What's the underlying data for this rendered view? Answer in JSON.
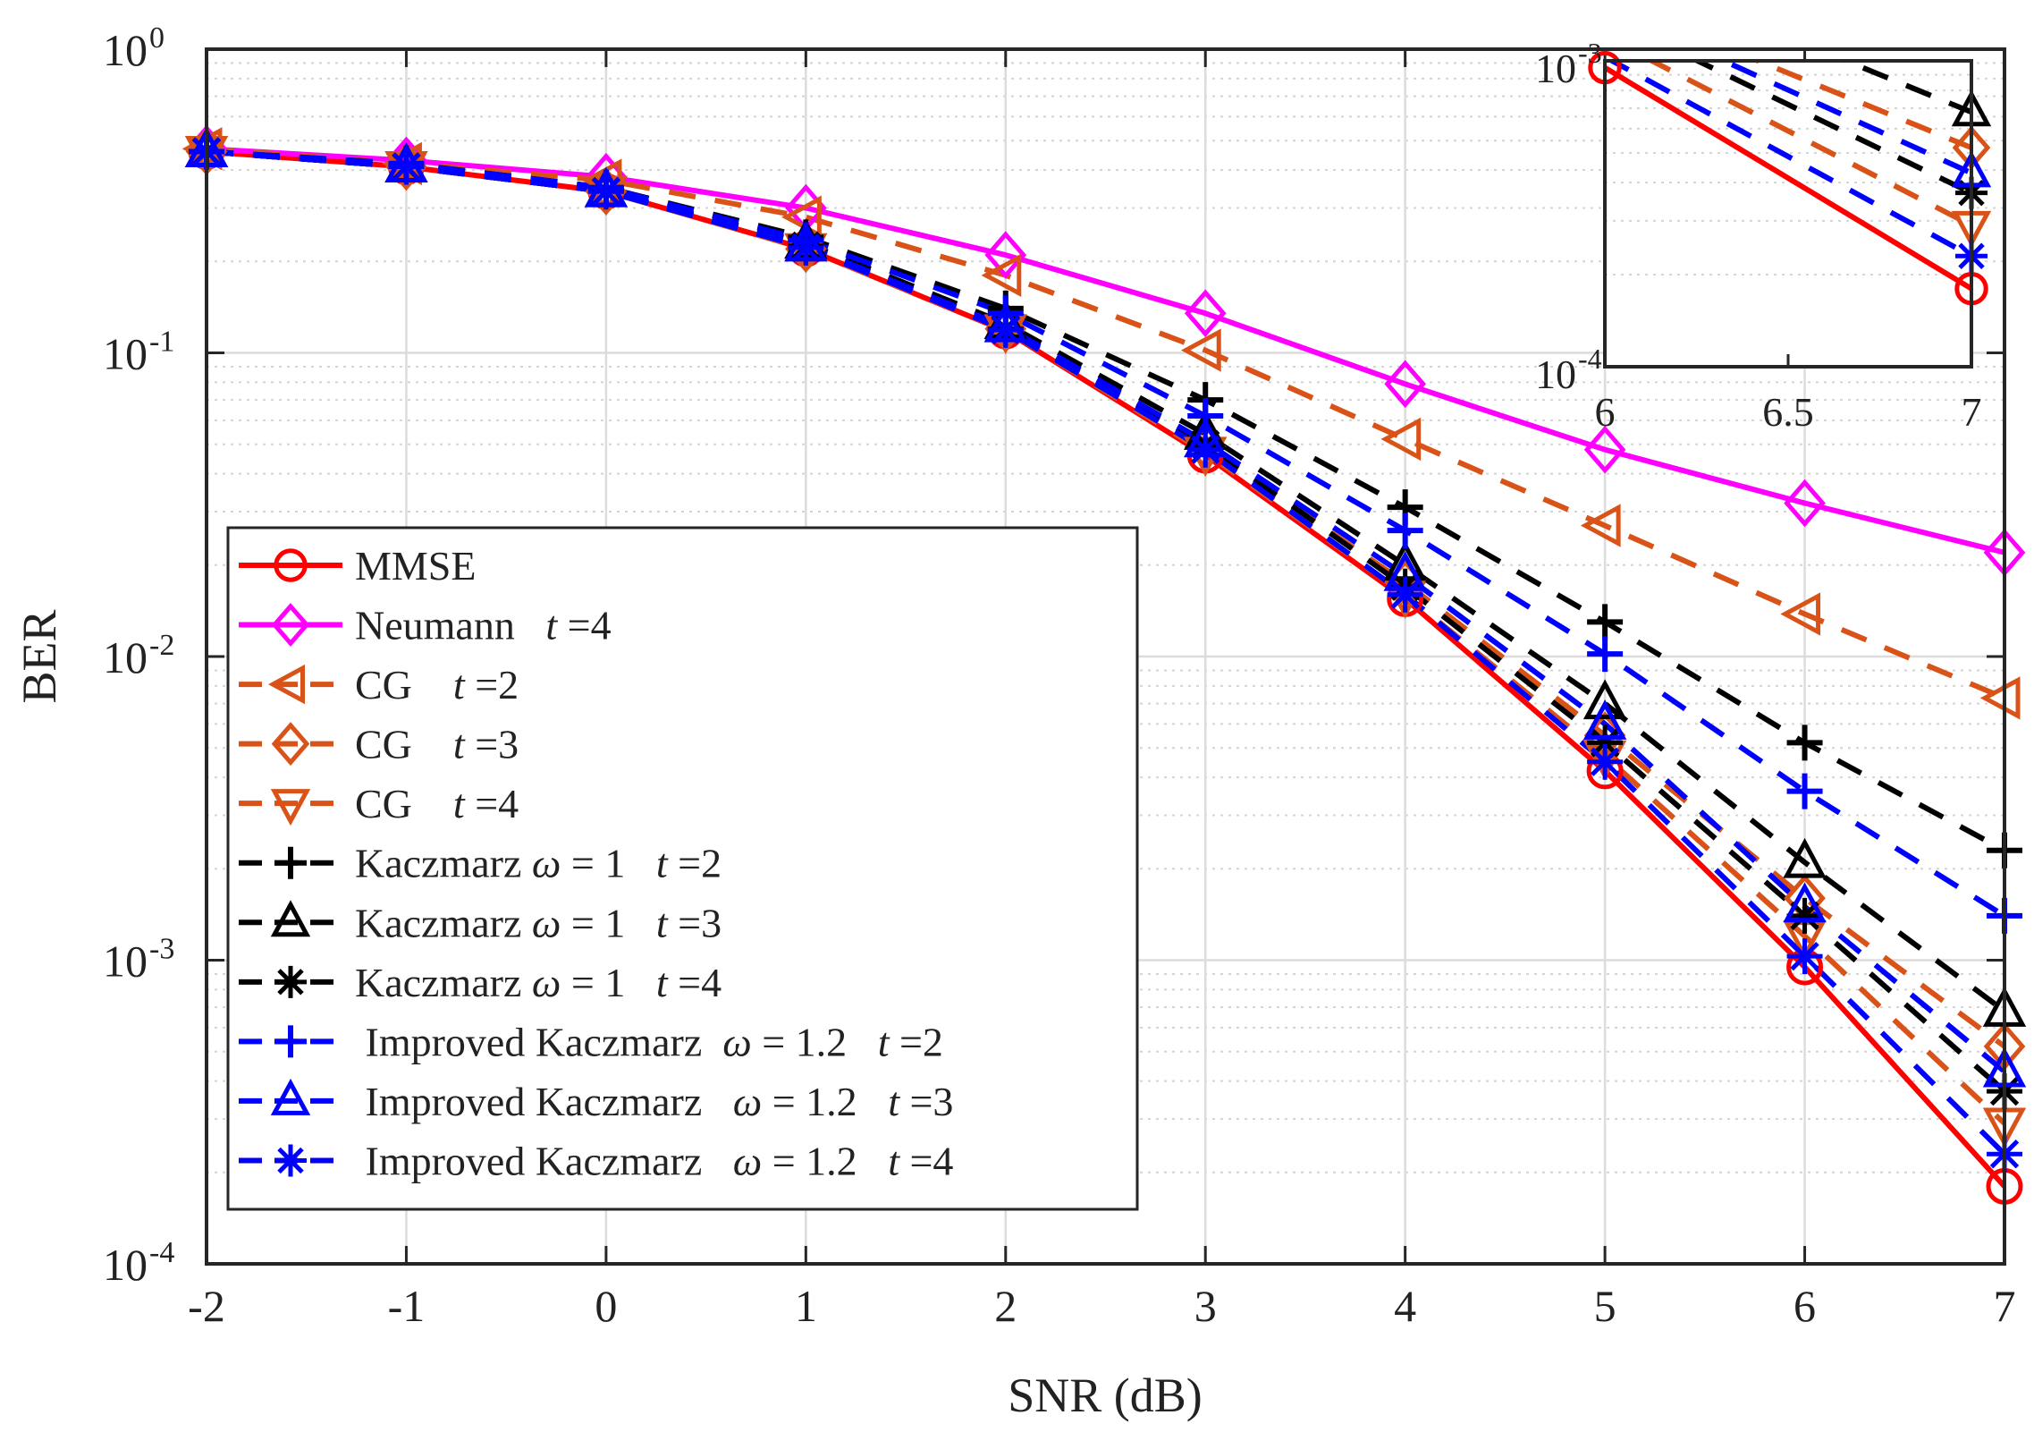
{
  "chart_data": {
    "type": "line",
    "xlabel": "SNR (dB)",
    "ylabel": "BER",
    "xlim": [
      -2,
      7
    ],
    "ylim": [
      0.0001,
      1
    ],
    "yscale": "log",
    "grid": true,
    "legend_position": "bottom-left",
    "x": [
      -2,
      -1,
      0,
      1,
      2,
      3,
      4,
      5,
      6,
      7
    ],
    "x_tick_labels": [
      "-2",
      "-1",
      "0",
      "1",
      "2",
      "3",
      "4",
      "5",
      "6",
      "7"
    ],
    "y_ticks": [
      {
        "value": 1,
        "base": "10",
        "exp": "0"
      },
      {
        "value": 0.1,
        "base": "10",
        "exp": "-1"
      },
      {
        "value": 0.01,
        "base": "10",
        "exp": "-2"
      },
      {
        "value": 0.001,
        "base": "10",
        "exp": "-3"
      },
      {
        "value": 0.0001,
        "base": "10",
        "exp": "-4"
      }
    ],
    "series": [
      {
        "name": "MMSE",
        "label_parts": [
          {
            "text": "MMSE",
            "italic": false
          }
        ],
        "color": "#ff0000",
        "dash": "solid",
        "marker": "circle",
        "values": [
          0.46,
          0.41,
          0.34,
          0.22,
          0.118,
          0.046,
          0.0155,
          0.0042,
          0.00095,
          0.00018
        ]
      },
      {
        "name": "Neumann t =4",
        "label_parts": [
          {
            "text": "Neumann   ",
            "italic": false
          },
          {
            "text": "t",
            "italic": true
          },
          {
            "text": " =4",
            "italic": false
          }
        ],
        "color": "#ff00ff",
        "dash": "solid",
        "marker": "diamond",
        "values": [
          0.47,
          0.43,
          0.38,
          0.3,
          0.21,
          0.135,
          0.079,
          0.048,
          0.032,
          0.022
        ]
      },
      {
        "name": "CG t =2",
        "label_parts": [
          {
            "text": "CG    ",
            "italic": false
          },
          {
            "text": "t",
            "italic": true
          },
          {
            "text": " =2",
            "italic": false
          }
        ],
        "color": "#d95319",
        "dash": "dashed",
        "marker": "triangle-left",
        "values": [
          0.47,
          0.42,
          0.37,
          0.28,
          0.18,
          0.102,
          0.052,
          0.027,
          0.0138,
          0.0073
        ]
      },
      {
        "name": "CG t =3",
        "label_parts": [
          {
            "text": "CG    ",
            "italic": false
          },
          {
            "text": "t",
            "italic": true
          },
          {
            "text": " =3",
            "italic": false
          }
        ],
        "color": "#d95319",
        "dash": "dashed",
        "marker": "diamond",
        "values": [
          0.46,
          0.41,
          0.34,
          0.22,
          0.12,
          0.049,
          0.0175,
          0.0055,
          0.0016,
          0.00052
        ]
      },
      {
        "name": "CG t =4",
        "label_parts": [
          {
            "text": "CG    ",
            "italic": false
          },
          {
            "text": "t",
            "italic": true
          },
          {
            "text": " =4",
            "italic": false
          }
        ],
        "color": "#d95319",
        "dash": "dashed",
        "marker": "triangle-down",
        "values": [
          0.46,
          0.41,
          0.34,
          0.22,
          0.119,
          0.047,
          0.016,
          0.0047,
          0.0012,
          0.00029
        ]
      },
      {
        "name": "Kaczmarz ω = 1 t =2",
        "label_parts": [
          {
            "text": "Kaczmarz ",
            "italic": false
          },
          {
            "text": "ω",
            "italic": true
          },
          {
            "text": " = 1   ",
            "italic": false
          },
          {
            "text": "t",
            "italic": true
          },
          {
            "text": " =2",
            "italic": false
          }
        ],
        "color": "#000000",
        "dash": "dashed",
        "marker": "plus",
        "values": [
          0.46,
          0.42,
          0.35,
          0.24,
          0.14,
          0.07,
          0.031,
          0.013,
          0.0052,
          0.0023
        ]
      },
      {
        "name": "Kaczmarz ω = 1 t =3",
        "label_parts": [
          {
            "text": "Kaczmarz ",
            "italic": false
          },
          {
            "text": "ω",
            "italic": true
          },
          {
            "text": " = 1   ",
            "italic": false
          },
          {
            "text": "t",
            "italic": true
          },
          {
            "text": " =3",
            "italic": false
          }
        ],
        "color": "#000000",
        "dash": "dashed",
        "marker": "triangle-up",
        "values": [
          0.46,
          0.41,
          0.34,
          0.23,
          0.125,
          0.054,
          0.02,
          0.007,
          0.0021,
          0.00068
        ]
      },
      {
        "name": "Kaczmarz ω = 1 t =4",
        "label_parts": [
          {
            "text": "Kaczmarz ",
            "italic": false
          },
          {
            "text": "ω",
            "italic": true
          },
          {
            "text": " = 1   ",
            "italic": false
          },
          {
            "text": "t",
            "italic": true
          },
          {
            "text": " =4",
            "italic": false
          }
        ],
        "color": "#000000",
        "dash": "dashed",
        "marker": "asterisk",
        "values": [
          0.46,
          0.41,
          0.34,
          0.225,
          0.12,
          0.05,
          0.017,
          0.0052,
          0.0014,
          0.00037
        ]
      },
      {
        "name": "Improved Kaczmarz ω = 1.2 t =2",
        "label_parts": [
          {
            "text": " Improved Kaczmarz  ",
            "italic": false
          },
          {
            "text": "ω",
            "italic": true
          },
          {
            "text": " = 1.2   ",
            "italic": false
          },
          {
            "text": "t",
            "italic": true
          },
          {
            "text": " =2",
            "italic": false
          }
        ],
        "color": "#0000ff",
        "dash": "dashed",
        "marker": "plus",
        "values": [
          0.46,
          0.42,
          0.35,
          0.235,
          0.135,
          0.062,
          0.026,
          0.0102,
          0.0036,
          0.0014
        ]
      },
      {
        "name": "Improved Kaczmarz ω = 1.2 t =3",
        "label_parts": [
          {
            "text": " Improved Kaczmarz   ",
            "italic": false
          },
          {
            "text": "ω",
            "italic": true
          },
          {
            "text": " = 1.2   ",
            "italic": false
          },
          {
            "text": "t",
            "italic": true
          },
          {
            "text": " =3",
            "italic": false
          }
        ],
        "color": "#0000ff",
        "dash": "dashed",
        "marker": "triangle-up",
        "values": [
          0.46,
          0.41,
          0.34,
          0.225,
          0.122,
          0.051,
          0.0185,
          0.006,
          0.0015,
          0.00043
        ]
      },
      {
        "name": "Improved Kaczmarz ω = 1.2 t =4",
        "label_parts": [
          {
            "text": " Improved Kaczmarz   ",
            "italic": false
          },
          {
            "text": "ω",
            "italic": true
          },
          {
            "text": " = 1.2   ",
            "italic": false
          },
          {
            "text": "t",
            "italic": true
          },
          {
            "text": " =4",
            "italic": false
          }
        ],
        "color": "#0000ff",
        "dash": "dashed",
        "marker": "asterisk",
        "values": [
          0.46,
          0.41,
          0.34,
          0.222,
          0.119,
          0.048,
          0.016,
          0.0045,
          0.00103,
          0.00023
        ]
      }
    ],
    "inset": {
      "xlim": [
        6,
        7
      ],
      "ylim": [
        0.0001,
        0.001
      ],
      "x_tick_labels": [
        "6",
        "6.5",
        "7"
      ],
      "y_ticks": [
        {
          "value": 0.001,
          "base": "10",
          "exp": "-3"
        },
        {
          "value": 0.0001,
          "base": "10",
          "exp": "-4"
        }
      ]
    }
  }
}
